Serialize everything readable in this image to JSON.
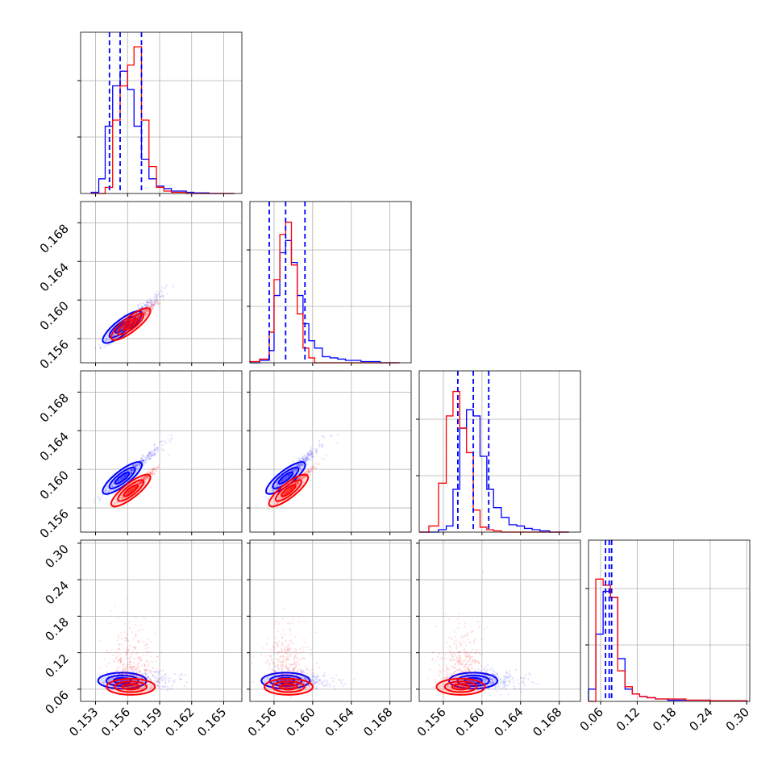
{
  "chart_data": {
    "type": "corner",
    "layout": "4x4 lower-triangular",
    "grid": true,
    "colors": {
      "blue": "#0000ff",
      "red": "#ff0000"
    },
    "series": [
      {
        "color": "blue",
        "quantiles_param1": [
          0.1543,
          0.1553,
          0.1573
        ],
        "quantiles_param2": [
          0.1555,
          0.1572,
          0.1592
        ],
        "quantiles_param3": [
          0.1575,
          0.1591,
          0.1607
        ],
        "quantiles_param4": [
          0.068,
          0.074,
          0.078
        ],
        "centers": [
          0.1555,
          0.1572,
          0.1591,
          0.074
        ]
      },
      {
        "color": "red",
        "centers": [
          0.1563,
          0.1575,
          0.1578,
          0.064
        ]
      }
    ],
    "panels_1d": [
      {
        "param": 1,
        "bins": [
          0.1526,
          0.1533,
          0.1539,
          0.1546,
          0.1553,
          0.156,
          0.1566,
          0.1573,
          0.158,
          0.1587,
          0.1594,
          0.1601,
          0.1608,
          0.1615,
          0.1622,
          0.1629,
          0.1636,
          0.1643,
          0.165,
          0.166
        ],
        "blue": [
          0.01,
          0.12,
          0.55,
          0.88,
          1.0,
          0.85,
          0.55,
          0.28,
          0.12,
          0.06,
          0.04,
          0.02,
          0.02,
          0.01,
          0.005,
          0.005,
          0.0,
          0.0,
          0.0
        ],
        "red": [
          0.0,
          0.0,
          0.05,
          0.6,
          0.88,
          1.05,
          1.2,
          0.6,
          0.22,
          0.05,
          0.02,
          0.01,
          0.01,
          0.0,
          0.0,
          0.0,
          0.0,
          0.0,
          0.0
        ]
      },
      {
        "param": 2,
        "bins": [
          0.1535,
          0.1545,
          0.1555,
          0.156,
          0.1566,
          0.1572,
          0.1578,
          0.1584,
          0.159,
          0.1596,
          0.1602,
          0.161,
          0.1618,
          0.1626,
          0.1634,
          0.1642,
          0.165,
          0.166,
          0.167,
          0.169
        ],
        "blue": [
          0.0,
          0.02,
          0.1,
          0.55,
          0.9,
          1.0,
          0.82,
          0.55,
          0.32,
          0.18,
          0.12,
          0.05,
          0.04,
          0.03,
          0.02,
          0.02,
          0.01,
          0.01,
          0.0
        ],
        "red": [
          0.01,
          0.03,
          0.25,
          0.68,
          1.05,
          1.15,
          0.8,
          0.4,
          0.12,
          0.04,
          0.0,
          0.0,
          0.0,
          0.0,
          0.0,
          0.0,
          0.0,
          0.0,
          0.0
        ]
      },
      {
        "param": 3,
        "bins": [
          0.1535,
          0.1545,
          0.1555,
          0.1563,
          0.157,
          0.1577,
          0.1584,
          0.1591,
          0.1598,
          0.1605,
          0.1612,
          0.162,
          0.1628,
          0.1636,
          0.1644,
          0.1652,
          0.166,
          0.167,
          0.169
        ],
        "blue": [
          0.0,
          0.0,
          0.02,
          0.05,
          0.35,
          0.85,
          1.0,
          0.95,
          0.62,
          0.35,
          0.2,
          0.12,
          0.06,
          0.05,
          0.03,
          0.02,
          0.01,
          0.0
        ],
        "red": [
          0.0,
          0.05,
          0.4,
          0.95,
          1.15,
          0.85,
          0.65,
          0.18,
          0.04,
          0.02,
          0.01,
          0.0,
          0.0,
          0.0,
          0.0,
          0.0,
          0.0,
          0.0
        ]
      },
      {
        "param": 4,
        "bins": [
          0.04,
          0.052,
          0.064,
          0.076,
          0.088,
          0.1,
          0.112,
          0.124,
          0.136,
          0.15,
          0.17,
          0.2,
          0.24,
          0.3
        ],
        "blue": [
          0.1,
          0.55,
          0.9,
          0.85,
          0.35,
          0.1,
          0.06,
          0.04,
          0.03,
          0.02,
          0.01,
          0.01,
          0.005
        ],
        "red": [
          0.0,
          1.0,
          0.95,
          0.85,
          0.25,
          0.12,
          0.06,
          0.04,
          0.03,
          0.02,
          0.02,
          0.01,
          0.005
        ]
      }
    ],
    "ranges": [
      [
        0.1516,
        0.1667
      ],
      [
        0.1535,
        0.1702
      ],
      [
        0.1535,
        0.1702
      ],
      [
        0.04,
        0.305
      ]
    ],
    "ticks": [
      [
        "0.153",
        "0.156",
        "0.159",
        "0.162",
        "0.165"
      ],
      [
        "0.156",
        "0.160",
        "0.164",
        "0.168"
      ],
      [
        "0.156",
        "0.160",
        "0.164",
        "0.168"
      ],
      [
        "0.06",
        "0.12",
        "0.18",
        "0.24",
        "0.30"
      ]
    ],
    "tick_values": [
      [
        0.153,
        0.156,
        0.159,
        0.162,
        0.165
      ],
      [
        0.156,
        0.16,
        0.164,
        0.168
      ],
      [
        0.156,
        0.16,
        0.164,
        0.168
      ],
      [
        0.06,
        0.12,
        0.18,
        0.24,
        0.3
      ]
    ]
  }
}
